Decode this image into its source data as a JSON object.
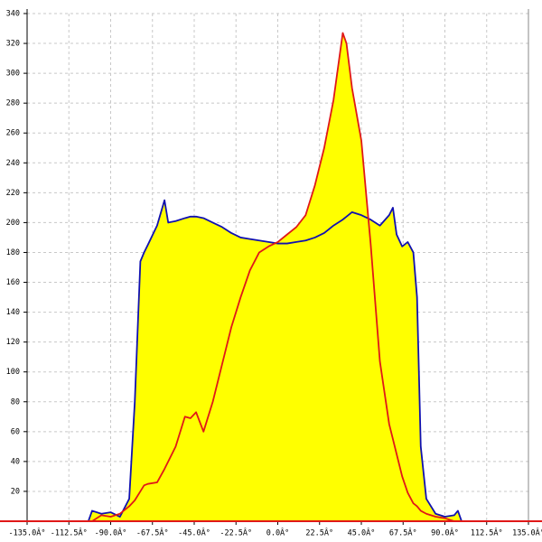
{
  "chart_data": {
    "type": "area",
    "x": [
      -102,
      -100,
      -95,
      -90,
      -85,
      -80,
      -77,
      -74,
      -72,
      -70,
      -65,
      -61,
      -59,
      -55,
      -50,
      -47,
      -44,
      -40,
      -35,
      -30,
      -25,
      -20,
      -15,
      -10,
      -5,
      0,
      5,
      10,
      15,
      20,
      25,
      30,
      35,
      37,
      40,
      45,
      50,
      55,
      60,
      62,
      64,
      67,
      70,
      73,
      75,
      77,
      80,
      85,
      90,
      95,
      97,
      99
    ],
    "series": [
      {
        "color": "#1010b0",
        "values": [
          0,
          7,
          5,
          6,
          3,
          15,
          80,
          174,
          180,
          185,
          198,
          215,
          200,
          201,
          203,
          204,
          204,
          203,
          200,
          197,
          193,
          190,
          189,
          188,
          187,
          186,
          186,
          187,
          188,
          190,
          193,
          198,
          202,
          204,
          207,
          205,
          202,
          198,
          205,
          210,
          192,
          184,
          187,
          180,
          150,
          50,
          15,
          5,
          3,
          4,
          7,
          0
        ]
      },
      {
        "color": "#e01818",
        "values": [
          0,
          0,
          4,
          3,
          5,
          10,
          14,
          20,
          24,
          25,
          26,
          35,
          40,
          50,
          70,
          69,
          73,
          60,
          80,
          105,
          130,
          150,
          168,
          180,
          184,
          187,
          192,
          197,
          205,
          225,
          250,
          282,
          327,
          320,
          290,
          255,
          186,
          107,
          65,
          55,
          45,
          30,
          19,
          12,
          10,
          7,
          5,
          3,
          2,
          0,
          0,
          0
        ]
      }
    ],
    "fill": "#ffff00",
    "xlim": [
      -135,
      135
    ],
    "xticks": [
      {
        "value": -135,
        "label": "-135.0Â°"
      },
      {
        "value": -112.5,
        "label": "-112.5Â°"
      },
      {
        "value": -90,
        "label": "-90.0Â°"
      },
      {
        "value": -67.5,
        "label": "-67.5Â°"
      },
      {
        "value": -45,
        "label": "-45.0Â°"
      },
      {
        "value": -22.5,
        "label": "-22.5Â°"
      },
      {
        "value": 0,
        "label": "0.0Â°"
      },
      {
        "value": 22.5,
        "label": "22.5Â°"
      },
      {
        "value": 45,
        "label": "45.0Â°"
      },
      {
        "value": 67.5,
        "label": "67.5Â°"
      },
      {
        "value": 90,
        "label": "90.0Â°"
      },
      {
        "value": 112.5,
        "label": "112.5Â°"
      },
      {
        "value": 135,
        "label": "135.0Â°"
      }
    ],
    "ylim": [
      0,
      340
    ],
    "yticks": [
      20,
      40,
      60,
      80,
      100,
      120,
      140,
      160,
      180,
      200,
      220,
      240,
      260,
      280,
      300,
      320,
      340
    ],
    "grid": true
  }
}
